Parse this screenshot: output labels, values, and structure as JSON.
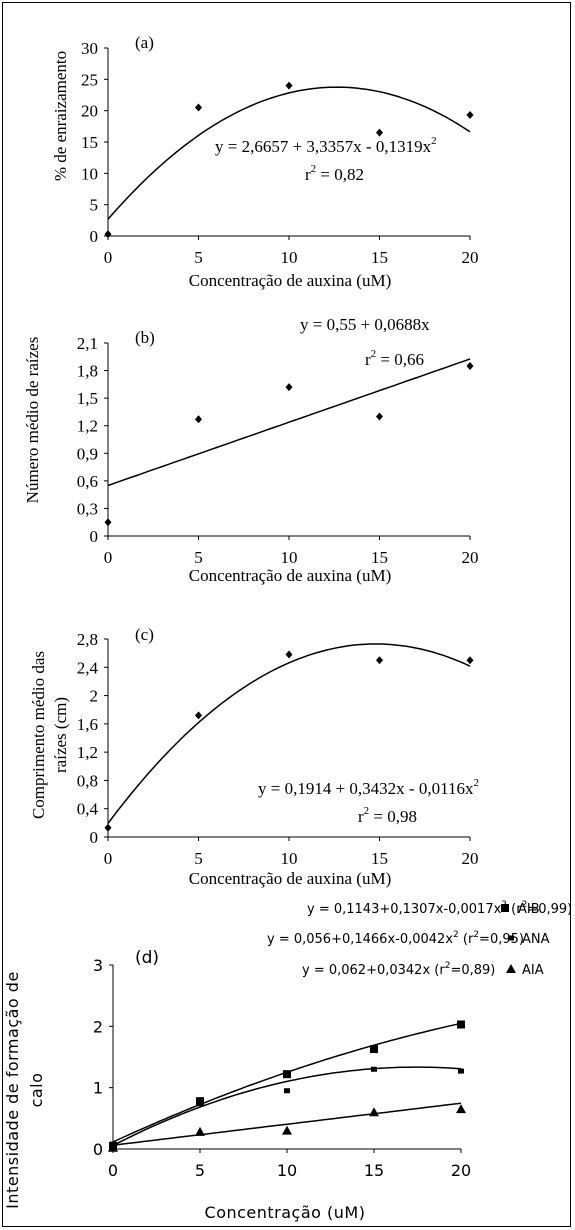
{
  "chart_data": [
    {
      "panel": "(a)",
      "type": "scatter",
      "xlabel": "Concentração de auxina (uM)",
      "ylabel": "% de enraizamento",
      "x_ticks": [
        "0",
        "5",
        "10",
        "15",
        "20"
      ],
      "y_ticks": [
        "0",
        "5",
        "10",
        "15",
        "20",
        "25",
        "30"
      ],
      "xlim": [
        0,
        20
      ],
      "ylim": [
        0,
        30
      ],
      "points": [
        {
          "x": 0,
          "y": 0.3
        },
        {
          "x": 5,
          "y": 20.5
        },
        {
          "x": 10,
          "y": 24.0
        },
        {
          "x": 15,
          "y": 16.5
        },
        {
          "x": 20,
          "y": 19.3
        }
      ],
      "fit": {
        "kind": "quadratic",
        "coef": [
          2.6657,
          3.3357,
          -0.1319
        ]
      },
      "equation": "y = 2,6657 + 3,3357x - 0,1319x",
      "equation_exp": "2",
      "r2_prefix": "r",
      "r2_exp": "2",
      "r2_value": " = 0,82"
    },
    {
      "panel": "(b)",
      "type": "scatter",
      "xlabel": "Concentração de auxina (uM)",
      "ylabel": "Número médio de raízes",
      "x_ticks": [
        "0",
        "5",
        "10",
        "15",
        "20"
      ],
      "y_ticks": [
        "0",
        "0,3",
        "0,6",
        "0,9",
        "1,2",
        "1,5",
        "1,8",
        "2,1"
      ],
      "xlim": [
        0,
        20
      ],
      "ylim": [
        0,
        2.1
      ],
      "points": [
        {
          "x": 0,
          "y": 0.15
        },
        {
          "x": 5,
          "y": 1.27
        },
        {
          "x": 10,
          "y": 1.62
        },
        {
          "x": 15,
          "y": 1.3
        },
        {
          "x": 20,
          "y": 1.85
        }
      ],
      "fit": {
        "kind": "linear",
        "coef": [
          0.55,
          0.0688
        ]
      },
      "equation": "y = 0,55 + 0,0688x",
      "equation_exp": "",
      "r2_prefix": "r",
      "r2_exp": "2",
      "r2_value": " = 0,66"
    },
    {
      "panel": "(c)",
      "type": "scatter",
      "xlabel": "Concentração de auxina (uM)",
      "ylabel_lines": [
        "Comprimento médio das",
        "raízes (cm)"
      ],
      "x_ticks": [
        "0",
        "5",
        "10",
        "15",
        "20"
      ],
      "y_ticks": [
        "0",
        "0,4",
        "0,8",
        "1,2",
        "1,6",
        "2",
        "2,4",
        "2,8"
      ],
      "xlim": [
        0,
        20
      ],
      "ylim": [
        0,
        2.8
      ],
      "points": [
        {
          "x": 0,
          "y": 0.13
        },
        {
          "x": 5,
          "y": 1.72
        },
        {
          "x": 10,
          "y": 2.58
        },
        {
          "x": 15,
          "y": 2.5
        },
        {
          "x": 20,
          "y": 2.5
        }
      ],
      "fit": {
        "kind": "quadratic",
        "coef": [
          0.1914,
          0.3432,
          -0.0116
        ]
      },
      "equation": "y = 0,1914 + 0,3432x - 0,0116x",
      "equation_exp": "2",
      "r2_prefix": "r",
      "r2_exp": "2",
      "r2_value": " = 0,98"
    },
    {
      "panel": "(d)",
      "type": "scatter",
      "xlabel": "Concentração (uM)",
      "ylabel_lines": [
        "Intensidade de formação de",
        "calo"
      ],
      "x_ticks": [
        "0",
        "5",
        "10",
        "15",
        "20"
      ],
      "y_ticks": [
        "0",
        "1",
        "2",
        "3"
      ],
      "xlim": [
        0,
        20
      ],
      "ylim": [
        0,
        3
      ],
      "series": [
        {
          "name": "AIB",
          "marker": "square",
          "points": [
            {
              "x": 0,
              "y": 0.05
            },
            {
              "x": 5,
              "y": 0.78
            },
            {
              "x": 10,
              "y": 1.22
            },
            {
              "x": 15,
              "y": 1.63
            },
            {
              "x": 20,
              "y": 2.03
            }
          ],
          "fit": {
            "kind": "quadratic",
            "coef": [
              0.1143,
              0.1307,
              -0.0017
            ]
          },
          "equation_a": "y = 0,1143+0,1307x-0,0017x",
          "equation_exp": "2",
          "equation_b": " (r",
          "r2_exp": "2",
          "equation_c": "=0,99)"
        },
        {
          "name": "ANA",
          "marker": "small-square",
          "points": [
            {
              "x": 0,
              "y": 0.08
            },
            {
              "x": 5,
              "y": 0.74
            },
            {
              "x": 10,
              "y": 0.95
            },
            {
              "x": 15,
              "y": 1.3
            },
            {
              "x": 20,
              "y": 1.27
            }
          ],
          "fit": {
            "kind": "quadratic",
            "coef": [
              0.056,
              0.1466,
              -0.0042
            ]
          },
          "equation_a": "y = 0,056+0,1466x-0,0042x",
          "equation_exp": "2",
          "equation_b": " (r",
          "r2_exp": "2",
          "equation_c": "=0,95)"
        },
        {
          "name": "AIA",
          "marker": "triangle",
          "points": [
            {
              "x": 0,
              "y": 0.02
            },
            {
              "x": 5,
              "y": 0.28
            },
            {
              "x": 10,
              "y": 0.3
            },
            {
              "x": 15,
              "y": 0.6
            },
            {
              "x": 20,
              "y": 0.65
            }
          ],
          "fit": {
            "kind": "linear",
            "coef": [
              0.062,
              0.0342
            ]
          },
          "equation_a": "y = 0,062+0,0342x",
          "equation_exp": "",
          "equation_b": " (r",
          "r2_exp": "2",
          "equation_c": "=0,89)"
        }
      ]
    }
  ]
}
